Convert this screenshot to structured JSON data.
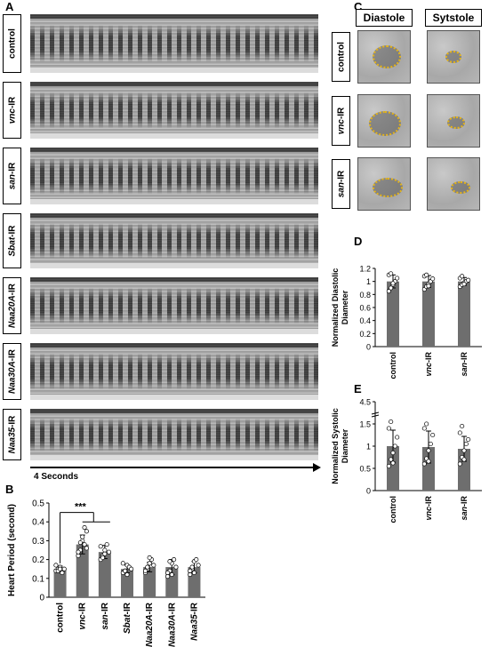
{
  "panels": {
    "a": "A",
    "b": "B",
    "c": "C",
    "d": "D",
    "e": "E"
  },
  "panel_a": {
    "rows": [
      {
        "label": "control",
        "italic": ""
      },
      {
        "label": "-IR",
        "italic": "vnc"
      },
      {
        "label": "-IR",
        "italic": "san"
      },
      {
        "label": "-IR",
        "italic": "Sbat"
      },
      {
        "label": "-IR",
        "italic": "Naa20A"
      },
      {
        "label": "-IR",
        "italic": "Naa30A"
      },
      {
        "label": "-IR",
        "italic": "Naa35"
      }
    ],
    "time_label": "4 Seconds"
  },
  "panel_c": {
    "col_labels": [
      "Diastole",
      "Sytstole"
    ],
    "rows": [
      {
        "label": "control",
        "italic": ""
      },
      {
        "label": "-IR",
        "italic": "vnc"
      },
      {
        "label": "-IR",
        "italic": "san"
      }
    ]
  },
  "chart_data": [
    {
      "type": "bar",
      "panel": "B",
      "title": "",
      "xlabel": "",
      "ylabel": "Heart Period (second)",
      "ylim": [
        0,
        0.5
      ],
      "yticks": [
        "0",
        "0.1",
        "0.2",
        "0.3",
        "0.4",
        "0.5"
      ],
      "categories": [
        "control",
        "vnc-IR",
        "san-IR",
        "Sbat-IR",
        "Naa20A-IR",
        "Naa30A-IR",
        "Naa35-IR"
      ],
      "category_parts": [
        {
          "italic": "",
          "plain": "control"
        },
        {
          "italic": "vnc",
          "plain": "-IR"
        },
        {
          "italic": "san",
          "plain": "-IR"
        },
        {
          "italic": "Sbat",
          "plain": "-IR"
        },
        {
          "italic": "Naa20A",
          "plain": "-IR"
        },
        {
          "italic": "Naa30A",
          "plain": "-IR"
        },
        {
          "italic": "Naa35",
          "plain": "-IR"
        }
      ],
      "values": [
        0.15,
        0.28,
        0.24,
        0.15,
        0.16,
        0.16,
        0.16
      ],
      "errors": [
        0.015,
        0.05,
        0.035,
        0.02,
        0.025,
        0.04,
        0.03
      ],
      "points": [
        [
          0.14,
          0.15,
          0.16,
          0.13,
          0.15,
          0.17,
          0.14,
          0.15
        ],
        [
          0.22,
          0.25,
          0.3,
          0.28,
          0.35,
          0.24,
          0.29,
          0.32,
          0.37,
          0.26
        ],
        [
          0.2,
          0.22,
          0.25,
          0.28,
          0.24,
          0.27,
          0.21,
          0.23
        ],
        [
          0.13,
          0.14,
          0.17,
          0.16,
          0.15,
          0.18,
          0.14,
          0.12
        ],
        [
          0.13,
          0.15,
          0.18,
          0.2,
          0.17,
          0.14,
          0.16,
          0.21
        ],
        [
          0.11,
          0.14,
          0.18,
          0.2,
          0.16,
          0.13,
          0.19,
          0.12
        ],
        [
          0.12,
          0.15,
          0.19,
          0.2,
          0.17,
          0.14,
          0.16,
          0.13
        ]
      ],
      "significance": "***"
    },
    {
      "type": "bar",
      "panel": "D",
      "title": "",
      "ylabel": "Normalized Diastolic Diameter",
      "ylabel_lines": [
        "Normalized Diastolic",
        "Diameter"
      ],
      "ylim": [
        0,
        1.2
      ],
      "yticks": [
        "0",
        "0.2",
        "0.4",
        "0.6",
        "0.8",
        "1",
        "1.2"
      ],
      "categories": [
        "control",
        "vnc-IR",
        "san-IR"
      ],
      "category_parts": [
        {
          "italic": "",
          "plain": "control"
        },
        {
          "italic": "vnc",
          "plain": "-IR"
        },
        {
          "italic": "san",
          "plain": "-IR"
        }
      ],
      "values": [
        1.0,
        1.0,
        1.0
      ],
      "errors": [
        0.1,
        0.09,
        0.06
      ],
      "points": [
        [
          0.85,
          0.9,
          0.95,
          1.0,
          1.05,
          1.1,
          1.12,
          0.97
        ],
        [
          0.88,
          0.92,
          0.96,
          1.0,
          1.04,
          1.08,
          1.1,
          0.93
        ],
        [
          0.92,
          0.95,
          0.98,
          1.0,
          1.02,
          1.05,
          1.08,
          0.96
        ]
      ]
    },
    {
      "type": "bar",
      "panel": "E",
      "title": "",
      "ylabel": "Normalized Systolic Diameter",
      "ylabel_lines": [
        "Normalized Systolic",
        "Diameter"
      ],
      "ylim": [
        0,
        4.5
      ],
      "yticks": [
        "0",
        "0.5",
        "1",
        "1.5",
        "4.5"
      ],
      "yticks_pos": [
        0,
        0.5,
        1,
        1.5,
        2.0
      ],
      "categories": [
        "control",
        "vnc-IR",
        "san-IR"
      ],
      "category_parts": [
        {
          "italic": "",
          "plain": "control"
        },
        {
          "italic": "vnc",
          "plain": "-IR"
        },
        {
          "italic": "san",
          "plain": "-IR"
        }
      ],
      "values": [
        1.0,
        0.98,
        0.94
      ],
      "errors": [
        0.36,
        0.36,
        0.28
      ],
      "points": [
        [
          0.55,
          0.7,
          0.85,
          1.0,
          1.2,
          1.4,
          1.55,
          0.62
        ],
        [
          0.6,
          0.72,
          0.9,
          1.05,
          1.25,
          1.4,
          1.5,
          0.66
        ],
        [
          0.6,
          0.75,
          0.9,
          1.05,
          1.15,
          1.3,
          1.45,
          0.7
        ]
      ]
    }
  ],
  "colors": {
    "bar": "#6e6e6e",
    "contour": "#e6b417"
  }
}
